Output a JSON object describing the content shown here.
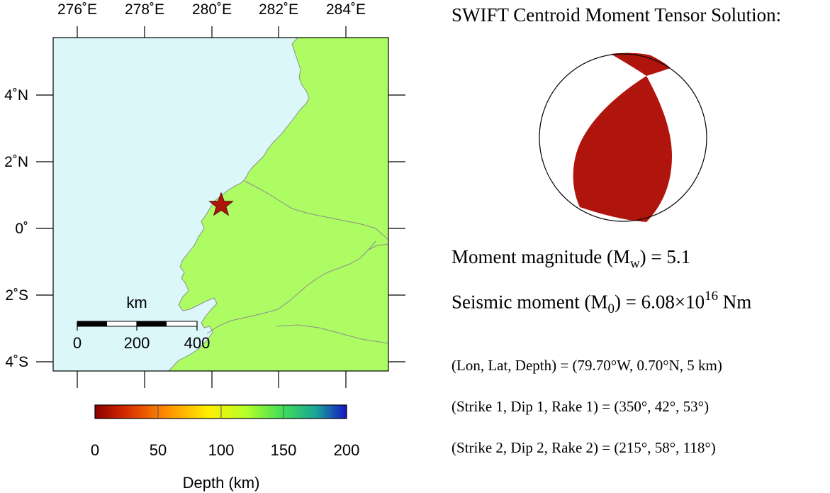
{
  "map": {
    "top_labels": [
      "276˚E",
      "278˚E",
      "280˚E",
      "282˚E",
      "284˚E"
    ],
    "left_labels": [
      "4˚N",
      "2˚N",
      "0˚",
      "2˚S",
      "4˚S"
    ],
    "scale_bar": {
      "unit_label": "km",
      "tick_labels": [
        "0",
        "200",
        "400"
      ]
    },
    "epicenter": {
      "lon": "79.70°W",
      "lat": "0.70°N"
    },
    "ocean_color": "#dcf7fa",
    "land_color": "#adfc63",
    "marker_color": "#b0150d"
  },
  "colorbar": {
    "tick_labels": [
      "0",
      "50",
      "100",
      "150",
      "200"
    ],
    "title": "Depth (km)",
    "colors": [
      "#8b0000",
      "#ff4500",
      "#ffd700",
      "#adff2f",
      "#32cd32",
      "#20b2aa",
      "#0000cd"
    ]
  },
  "info": {
    "title": "SWIFT Centroid Moment Tensor Solution:",
    "moment_magnitude_prefix": "Moment magnitude (M",
    "moment_magnitude_sub": "w",
    "moment_magnitude_suffix": ") = 5.1",
    "seismic_moment_prefix": "Seismic moment (M",
    "seismic_moment_sub": "0",
    "seismic_moment_mid": ") = 6.08×10",
    "seismic_moment_sup": "16",
    "seismic_moment_suffix": " Nm",
    "location_line": "(Lon, Lat, Depth) = (79.70°W, 0.70°N, 5 km)",
    "plane1_line": "(Strike 1, Dip 1, Rake 1) = (350°, 42°, 53°)",
    "plane2_line": "(Strike 2, Dip 2, Rake 2) = (215°, 58°, 118°)",
    "beachball_color": "#b0150d"
  }
}
